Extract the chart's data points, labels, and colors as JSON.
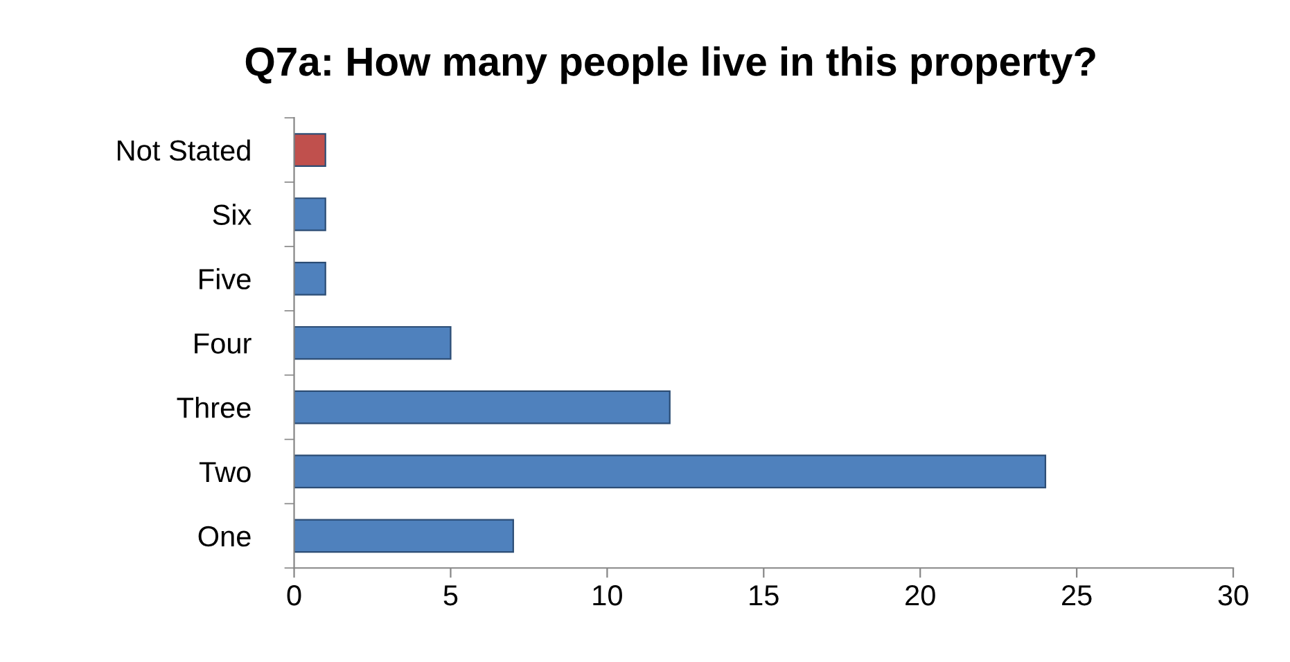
{
  "chart_data": {
    "type": "bar",
    "orientation": "horizontal",
    "title": "Q7a: How many people live in this property?",
    "categories": [
      "Not Stated",
      "Six",
      "Five",
      "Four",
      "Three",
      "Two",
      "One"
    ],
    "values": [
      1,
      1,
      1,
      5,
      12,
      24,
      7
    ],
    "colors": [
      "#c0504d",
      "#4f81bd",
      "#4f81bd",
      "#4f81bd",
      "#4f81bd",
      "#4f81bd",
      "#4f81bd"
    ],
    "xlim": [
      0,
      30
    ],
    "xticks": [
      0,
      5,
      10,
      15,
      20,
      25,
      30
    ],
    "grid": false,
    "legend": false
  }
}
